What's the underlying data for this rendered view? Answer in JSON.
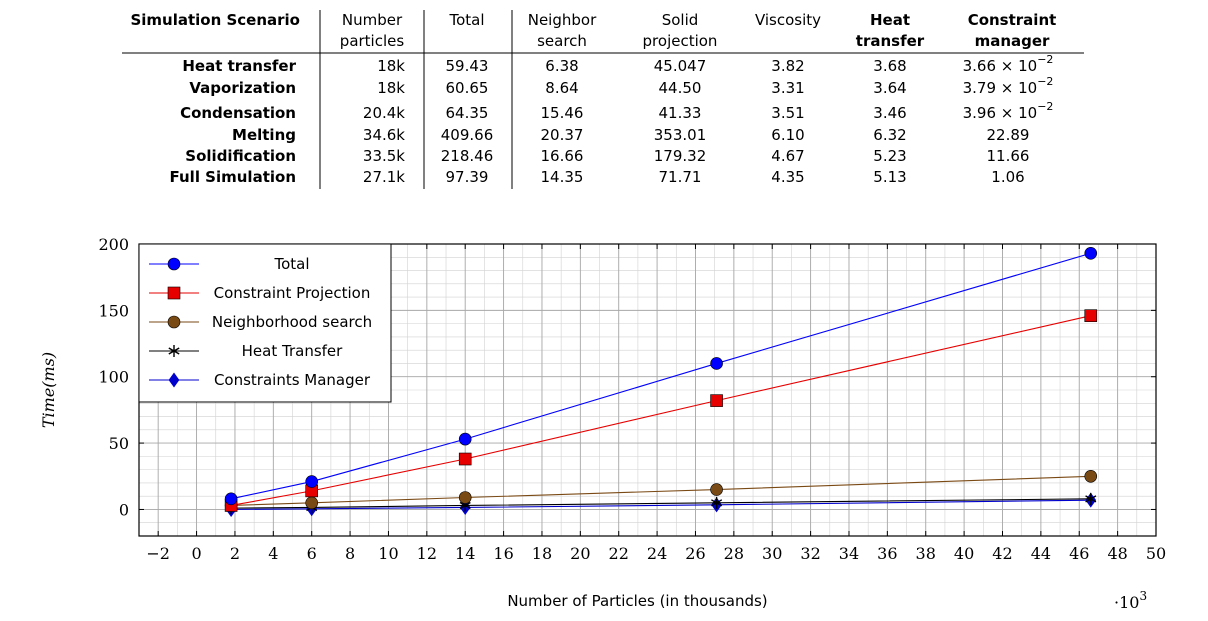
{
  "table": {
    "headers": [
      {
        "lines": [
          "Simulation Scenario"
        ],
        "bold": true
      },
      {
        "lines": [
          "Number",
          "particles"
        ],
        "bold": false
      },
      {
        "lines": [
          "Total"
        ],
        "bold": false
      },
      {
        "lines": [
          "Neighbor",
          "search"
        ],
        "bold": false
      },
      {
        "lines": [
          "Solid",
          "projection"
        ],
        "bold": false
      },
      {
        "lines": [
          "Viscosity"
        ],
        "bold": false
      },
      {
        "lines": [
          "Heat",
          "transfer"
        ],
        "bold": true
      },
      {
        "lines": [
          "Constraint",
          "manager"
        ],
        "bold": true
      }
    ],
    "rows": [
      {
        "scenario": "Heat transfer",
        "particles": "18k",
        "total": "59.43",
        "neighbor": "6.38",
        "solid": "45.047",
        "viscosity": "3.82",
        "heat": "3.68",
        "manager": {
          "mantissa": "3.66 × 10",
          "exp": "−2"
        }
      },
      {
        "scenario": "Vaporization",
        "particles": "18k",
        "total": "60.65",
        "neighbor": "8.64",
        "solid": "44.50",
        "viscosity": "3.31",
        "heat": "3.64",
        "manager": {
          "mantissa": "3.79 × 10",
          "exp": "−2"
        }
      },
      {
        "scenario": "Condensation",
        "particles": "20.4k",
        "total": "64.35",
        "neighbor": "15.46",
        "solid": "41.33",
        "viscosity": "3.51",
        "heat": "3.46",
        "manager": {
          "mantissa": "3.96 × 10",
          "exp": "−2"
        }
      },
      {
        "scenario": "Melting",
        "particles": "34.6k",
        "total": "409.66",
        "neighbor": "20.37",
        "solid": "353.01",
        "viscosity": "6.10",
        "heat": "6.32",
        "manager": {
          "mantissa": "22.89",
          "exp": ""
        }
      },
      {
        "scenario": "Solidification",
        "particles": "33.5k",
        "total": "218.46",
        "neighbor": "16.66",
        "solid": "179.32",
        "viscosity": "4.67",
        "heat": "5.23",
        "manager": {
          "mantissa": "11.66",
          "exp": ""
        }
      },
      {
        "scenario": "Full Simulation",
        "particles": "27.1k",
        "total": "97.39",
        "neighbor": "14.35",
        "solid": "71.71",
        "viscosity": "4.35",
        "heat": "5.13",
        "manager": {
          "mantissa": "1.06",
          "exp": ""
        }
      }
    ]
  },
  "chart_data": {
    "type": "line",
    "xlabel": "Number of Particles (in thousands)",
    "ylabel": "Time(ms)",
    "x_multiplier_base": "·10",
    "x_multiplier_exp": "3",
    "xlim": [
      -3,
      50
    ],
    "ylim": [
      -20,
      200
    ],
    "xticks": [
      -2,
      0,
      2,
      4,
      6,
      8,
      10,
      12,
      14,
      16,
      18,
      20,
      22,
      24,
      26,
      28,
      30,
      32,
      34,
      36,
      38,
      40,
      42,
      44,
      46,
      48,
      50
    ],
    "yticks": [
      0,
      50,
      100,
      150,
      200
    ],
    "grid": true,
    "legend_position": "top-left",
    "x": [
      1.8,
      6,
      14,
      27.1,
      46.6
    ],
    "series": [
      {
        "name": "Total",
        "color": "#0000ff",
        "marker": "circle",
        "values": [
          8,
          21,
          53,
          110,
          193
        ]
      },
      {
        "name": "Constraint Projection",
        "color": "#e60000",
        "marker": "square",
        "values": [
          3,
          14,
          38,
          82,
          146
        ]
      },
      {
        "name": "Neighborhood search",
        "color": "#7a4a14",
        "marker": "circle",
        "values": [
          3,
          5,
          9,
          15,
          25
        ]
      },
      {
        "name": "Heat Transfer",
        "color": "#000000",
        "marker": "star",
        "values": [
          1,
          1.5,
          3,
          5,
          8
        ]
      },
      {
        "name": "Constraints Manager",
        "color": "#0000cc",
        "marker": "diamond",
        "values": [
          0,
          0.5,
          1.5,
          3.5,
          7
        ]
      }
    ]
  }
}
